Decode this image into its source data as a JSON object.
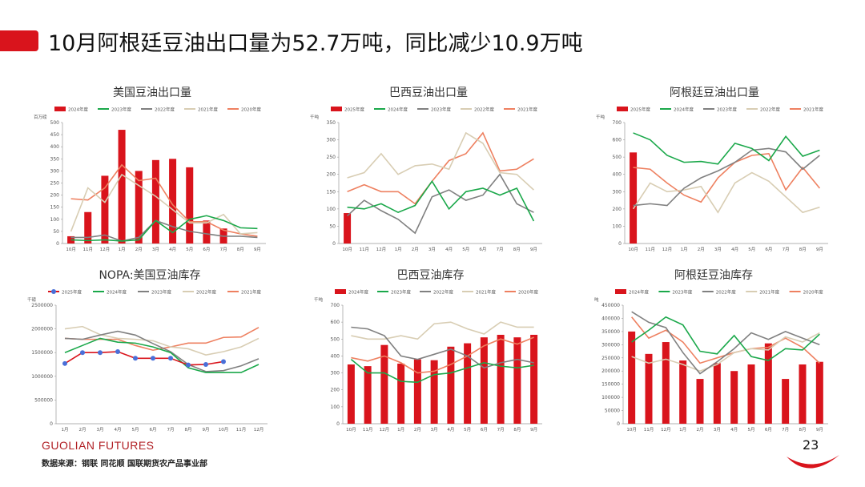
{
  "header": {
    "title": "10月阿根廷豆油出口量为52.7万吨，同比减少10.9万吨"
  },
  "footer": {
    "brand": "GUOLIAN FUTURES",
    "source": "数据来源：钢联  同花顺  国联期货农产品事业部",
    "page": "23"
  },
  "colors": {
    "red": "#d9141c",
    "green": "#1aa84a",
    "gray": "#808080",
    "beige": "#d8cdb3",
    "orange": "#ee8060",
    "blue": "#4a6fd8"
  },
  "chart_data": [
    {
      "id": "us-export",
      "type": "bar",
      "title": "美国豆油出口量",
      "unit": "百万磅",
      "categories": [
        "10月",
        "11月",
        "12月",
        "1月",
        "2月",
        "3月",
        "4月",
        "5月",
        "6月",
        "7月",
        "8月",
        "9月"
      ],
      "ylim": [
        0,
        500
      ],
      "yticks": [
        0,
        50,
        100,
        150,
        200,
        250,
        300,
        350,
        400,
        450,
        500
      ],
      "legend": [
        "2024年度",
        "2023年度",
        "2022年度",
        "2021年度",
        "2020年度"
      ],
      "series": [
        {
          "name": "2024年度",
          "kind": "bar",
          "color": "#d9141c",
          "values": [
            30,
            130,
            280,
            470,
            300,
            345,
            350,
            315,
            95,
            62,
            null,
            null
          ]
        },
        {
          "name": "2023年度",
          "kind": "line",
          "color": "#1aa84a",
          "values": [
            15,
            12,
            15,
            10,
            15,
            95,
            45,
            100,
            115,
            95,
            65,
            62
          ]
        },
        {
          "name": "2022年度",
          "kind": "line",
          "color": "#808080",
          "values": [
            25,
            25,
            35,
            10,
            25,
            95,
            70,
            50,
            40,
            30,
            30,
            25
          ]
        },
        {
          "name": "2021年度",
          "kind": "line",
          "color": "#d8cdb3",
          "values": [
            50,
            230,
            170,
            285,
            240,
            195,
            140,
            85,
            85,
            120,
            40,
            45
          ]
        },
        {
          "name": "2020年度",
          "kind": "line",
          "color": "#ee8060",
          "values": [
            185,
            180,
            230,
            325,
            260,
            270,
            160,
            90,
            90,
            55,
            40,
            30
          ]
        }
      ]
    },
    {
      "id": "br-export",
      "type": "bar",
      "title": "巴西豆油出口量",
      "unit": "千吨",
      "categories": [
        "10月",
        "11月",
        "12月",
        "1月",
        "2月",
        "3月",
        "4月",
        "5月",
        "6月",
        "7月",
        "8月",
        "9月"
      ],
      "ylim": [
        0,
        350
      ],
      "yticks": [
        0,
        50,
        100,
        150,
        200,
        250,
        300,
        350
      ],
      "legend": [
        "2025年度",
        "2024年度",
        "2023年度",
        "2022年度",
        "2021年度"
      ],
      "series": [
        {
          "name": "2025年度",
          "kind": "bar",
          "color": "#d9141c",
          "values": [
            88,
            null,
            null,
            null,
            null,
            null,
            null,
            null,
            null,
            null,
            null,
            null
          ]
        },
        {
          "name": "2024年度",
          "kind": "line",
          "color": "#1aa84a",
          "values": [
            105,
            100,
            115,
            90,
            110,
            180,
            100,
            150,
            160,
            140,
            160,
            65
          ]
        },
        {
          "name": "2023年度",
          "kind": "line",
          "color": "#808080",
          "values": [
            80,
            125,
            95,
            70,
            30,
            135,
            155,
            125,
            140,
            200,
            115,
            90
          ]
        },
        {
          "name": "2022年度",
          "kind": "line",
          "color": "#d8cdb3",
          "values": [
            190,
            205,
            260,
            200,
            225,
            230,
            215,
            320,
            290,
            205,
            200,
            155
          ]
        },
        {
          "name": "2021年度",
          "kind": "line",
          "color": "#ee8060",
          "values": [
            150,
            170,
            150,
            150,
            115,
            180,
            240,
            260,
            320,
            210,
            215,
            245
          ]
        }
      ]
    },
    {
      "id": "ar-export",
      "type": "bar",
      "title": "阿根廷豆油出口量",
      "unit": "千吨",
      "categories": [
        "10月",
        "11月",
        "12月",
        "1月",
        "2月",
        "3月",
        "4月",
        "5月",
        "6月",
        "7月",
        "8月",
        "9月"
      ],
      "ylim": [
        0,
        700
      ],
      "yticks": [
        0,
        100,
        200,
        300,
        400,
        500,
        600,
        700
      ],
      "legend": [
        "2025年度",
        "2024年度",
        "2023年度",
        "2022年度",
        "2021年度"
      ],
      "series": [
        {
          "name": "2025年度",
          "kind": "bar",
          "color": "#d9141c",
          "values": [
            527,
            null,
            null,
            null,
            null,
            null,
            null,
            null,
            null,
            null,
            null,
            null
          ]
        },
        {
          "name": "2024年度",
          "kind": "line",
          "color": "#1aa84a",
          "values": [
            640,
            600,
            510,
            470,
            475,
            460,
            580,
            550,
            480,
            620,
            505,
            540
          ]
        },
        {
          "name": "2023年度",
          "kind": "line",
          "color": "#808080",
          "values": [
            220,
            230,
            220,
            320,
            380,
            420,
            470,
            540,
            550,
            530,
            430,
            510
          ]
        },
        {
          "name": "2022年度",
          "kind": "line",
          "color": "#d8cdb3",
          "values": [
            200,
            350,
            300,
            310,
            330,
            180,
            350,
            410,
            360,
            270,
            180,
            210
          ]
        },
        {
          "name": "2021年度",
          "kind": "line",
          "color": "#ee8060",
          "values": [
            440,
            430,
            350,
            280,
            240,
            380,
            470,
            510,
            520,
            310,
            440,
            320
          ]
        }
      ]
    },
    {
      "id": "nopa-stock",
      "type": "line",
      "title": "NOPA:美国豆油库存",
      "unit": "千磅",
      "categories": [
        "1月",
        "2月",
        "3月",
        "4月",
        "5月",
        "6月",
        "7月",
        "8月",
        "9月",
        "10月",
        "11月",
        "12月"
      ],
      "ylim": [
        0,
        2500000
      ],
      "yticks": [
        0,
        500000,
        1000000,
        1500000,
        2000000,
        2500000
      ],
      "legend": [
        "2025年度",
        "2024年度",
        "2023年度",
        "2022年度",
        "2021年度"
      ],
      "series": [
        {
          "name": "2025年度",
          "kind": "line-marker",
          "color": "#4a6fd8",
          "line": "#d9141c",
          "values": [
            1270000,
            1500000,
            1500000,
            1520000,
            1380000,
            1380000,
            1380000,
            1240000,
            1250000,
            1310000,
            null,
            null
          ]
        },
        {
          "name": "2024年度",
          "kind": "line",
          "color": "#1aa84a",
          "values": [
            1500000,
            1650000,
            1800000,
            1720000,
            1700000,
            1620000,
            1500000,
            1180000,
            1080000,
            1080000,
            1080000,
            1250000
          ]
        },
        {
          "name": "2023年度",
          "kind": "line",
          "color": "#808080",
          "values": [
            1800000,
            1780000,
            1870000,
            1950000,
            1870000,
            1690000,
            1520000,
            1250000,
            1100000,
            1120000,
            1220000,
            1370000
          ]
        },
        {
          "name": "2022年度",
          "kind": "line",
          "color": "#d8cdb3",
          "values": [
            2000000,
            2050000,
            1880000,
            1800000,
            1780000,
            1750000,
            1620000,
            1580000,
            1450000,
            1520000,
            1620000,
            1800000
          ]
        },
        {
          "name": "2021年度",
          "kind": "line",
          "color": "#ee8060",
          "values": [
            1800000,
            1780000,
            1780000,
            1780000,
            1650000,
            1550000,
            1620000,
            1700000,
            1700000,
            1820000,
            1830000,
            2030000
          ]
        }
      ]
    },
    {
      "id": "br-stock",
      "type": "bar",
      "title": "巴西豆油库存",
      "unit": "千吨",
      "categories": [
        "10月",
        "11月",
        "12月",
        "1月",
        "2月",
        "3月",
        "4月",
        "5月",
        "6月",
        "7月",
        "8月",
        "9月"
      ],
      "ylim": [
        0,
        700
      ],
      "yticks": [
        0,
        100,
        200,
        300,
        400,
        500,
        600,
        700
      ],
      "legend": [
        "2024年度",
        "2023年度",
        "2022年度",
        "2021年度",
        "2020年度"
      ],
      "series": [
        {
          "name": "2024年度",
          "kind": "bar",
          "color": "#d9141c",
          "values": [
            350,
            340,
            465,
            355,
            380,
            375,
            455,
            475,
            510,
            525,
            510,
            525
          ]
        },
        {
          "name": "2023年度",
          "kind": "line",
          "color": "#1aa84a",
          "values": [
            380,
            300,
            300,
            250,
            245,
            290,
            300,
            330,
            360,
            340,
            330,
            345
          ]
        },
        {
          "name": "2022年度",
          "kind": "line",
          "color": "#808080",
          "values": [
            570,
            560,
            520,
            400,
            380,
            410,
            440,
            400,
            330,
            360,
            380,
            360
          ]
        },
        {
          "name": "2021年度",
          "kind": "line",
          "color": "#d8cdb3",
          "values": [
            520,
            500,
            500,
            520,
            500,
            590,
            600,
            560,
            530,
            600,
            570,
            570
          ]
        },
        {
          "name": "2020年度",
          "kind": "line",
          "color": "#ee8060",
          "values": [
            390,
            370,
            400,
            360,
            300,
            310,
            350,
            400,
            460,
            500,
            470,
            510
          ]
        }
      ]
    },
    {
      "id": "ar-stock",
      "type": "bar",
      "title": "阿根廷豆油库存",
      "unit": "吨",
      "categories": [
        "10月",
        "11月",
        "12月",
        "1月",
        "2月",
        "3月",
        "4月",
        "5月",
        "6月",
        "7月",
        "8月",
        "9月"
      ],
      "ylim": [
        0,
        450000
      ],
      "yticks": [
        0,
        50000,
        100000,
        150000,
        200000,
        250000,
        300000,
        350000,
        400000,
        450000
      ],
      "legend": [
        "2024年度",
        "2023年度",
        "2022年度",
        "2021年度",
        "2020年度"
      ],
      "series": [
        {
          "name": "2024年度",
          "kind": "bar",
          "color": "#d9141c",
          "values": [
            350000,
            265000,
            310000,
            240000,
            170000,
            230000,
            200000,
            225000,
            305000,
            170000,
            225000,
            235000
          ]
        },
        {
          "name": "2023年度",
          "kind": "line",
          "color": "#1aa84a",
          "values": [
            310000,
            355000,
            405000,
            375000,
            275000,
            265000,
            335000,
            255000,
            240000,
            285000,
            280000,
            340000
          ]
        },
        {
          "name": "2022年度",
          "kind": "line",
          "color": "#808080",
          "values": [
            425000,
            385000,
            365000,
            270000,
            190000,
            235000,
            285000,
            345000,
            320000,
            350000,
            325000,
            300000
          ]
        },
        {
          "name": "2021年度",
          "kind": "line",
          "color": "#d8cdb3",
          "values": [
            255000,
            230000,
            245000,
            225000,
            200000,
            225000,
            270000,
            285000,
            280000,
            330000,
            310000,
            345000
          ]
        },
        {
          "name": "2020年度",
          "kind": "line",
          "color": "#ee8060",
          "values": [
            405000,
            325000,
            355000,
            310000,
            230000,
            250000,
            270000,
            285000,
            290000,
            325000,
            290000,
            230000
          ]
        }
      ]
    }
  ]
}
